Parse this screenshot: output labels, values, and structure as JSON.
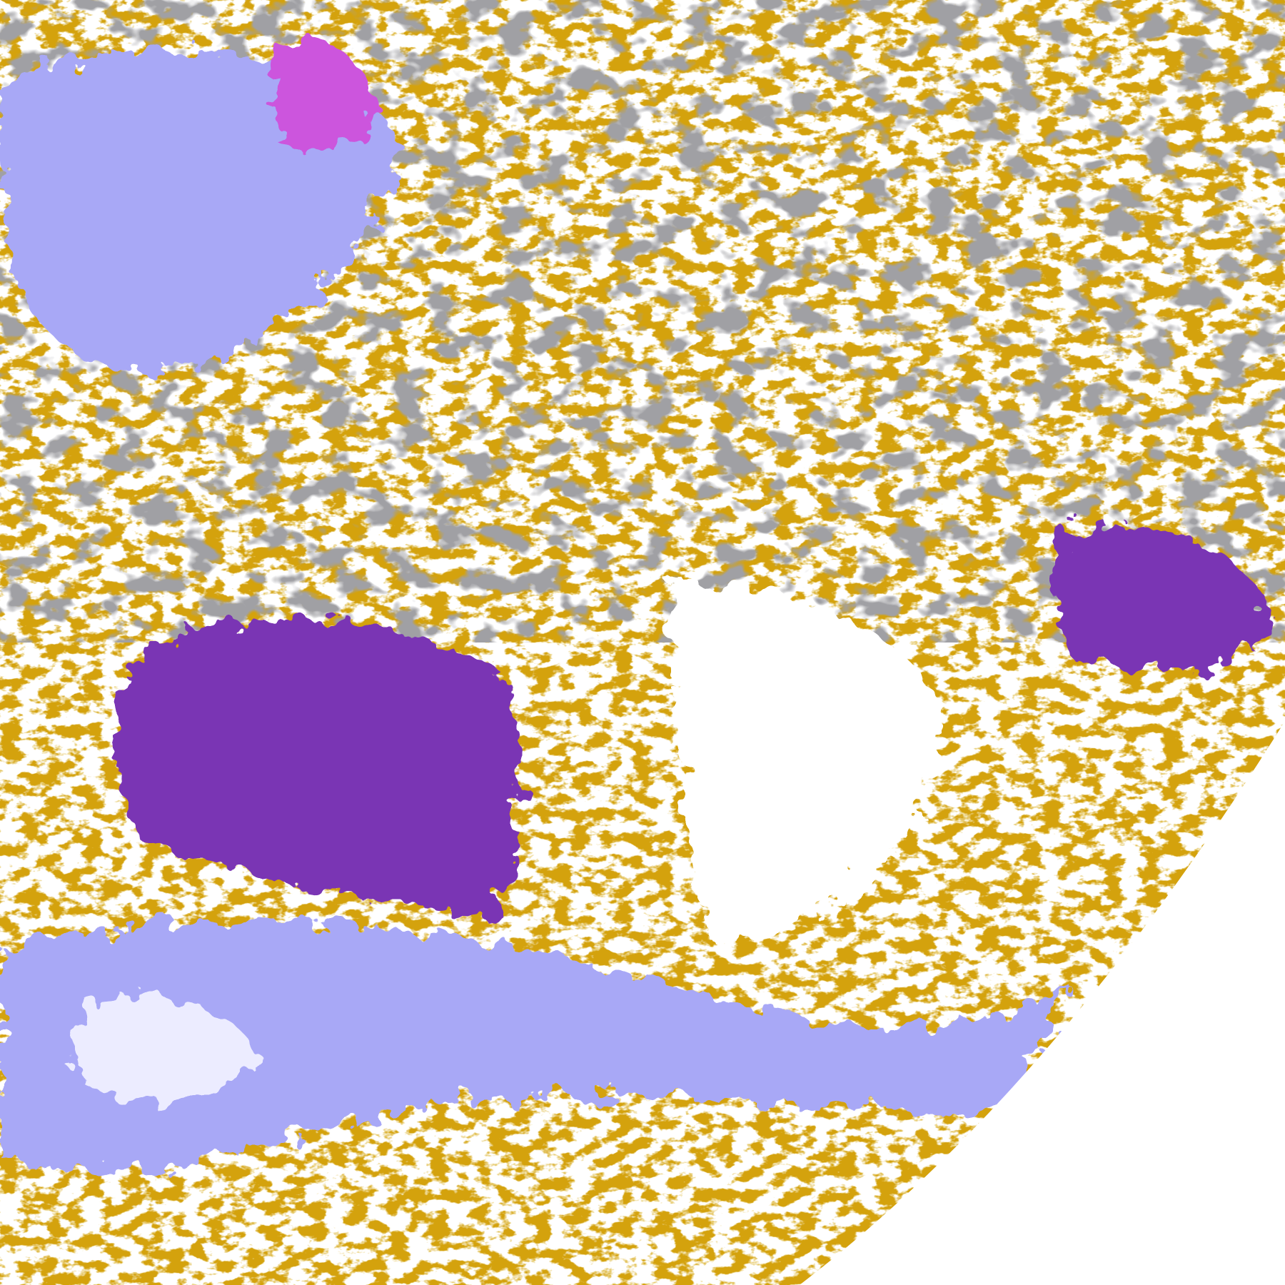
{
  "image": {
    "type": "satellite cloud-classification composite",
    "legend_visible": false,
    "colors": {
      "background": "#ffffff",
      "low_cloud": "#d4a20a",
      "thick_cloud": "#7a34b4",
      "convective": "#cc55dd",
      "high_cloud": "#a8a8f6",
      "cirrus_light": "#ececff",
      "thin_cloud": "#a0a0a4",
      "off_disk": "#ffffff"
    }
  }
}
